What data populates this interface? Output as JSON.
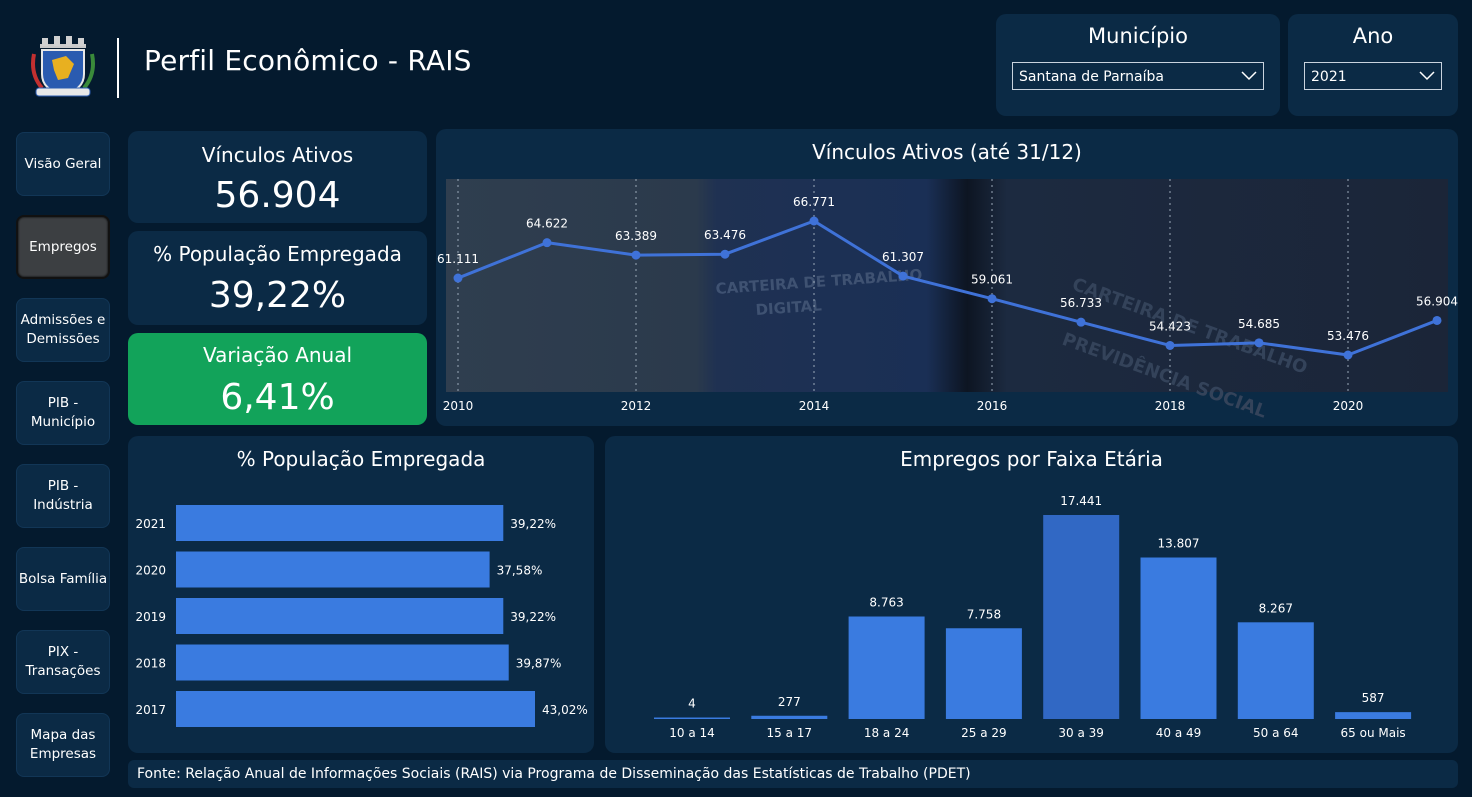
{
  "header": {
    "title": "Perfil Econômico - RAIS"
  },
  "filters": {
    "municipio": {
      "label": "Município",
      "value": "Santana de Parnaíba"
    },
    "ano": {
      "label": "Ano",
      "value": "2021"
    }
  },
  "nav": [
    {
      "label": "Visão Geral"
    },
    {
      "label": "Empregos",
      "active": true
    },
    {
      "label": "Admissões e Demissões"
    },
    {
      "label": "PIB - Município"
    },
    {
      "label": "PIB - Indústria"
    },
    {
      "label": "Bolsa Família"
    },
    {
      "label": "PIX - Transações"
    },
    {
      "label": "Mapa das Empresas"
    }
  ],
  "kpis": {
    "vinculos": {
      "label": "Vínculos Ativos",
      "value": "56.904"
    },
    "populacao": {
      "label": "% População Empregada",
      "value": "39,22%"
    },
    "variacao": {
      "label": "Variação Anual",
      "value": "6,41%"
    }
  },
  "colors": {
    "accent": "#3a7be0",
    "positive": "#12a35a",
    "line": "#3f72d8"
  },
  "footer": {
    "source": "Fonte: Relação Anual de Informações Sociais (RAIS) via Programa de Disseminação das Estatísticas de Trabalho (PDET)"
  },
  "chart_data": [
    {
      "type": "line",
      "title": "Vínculos Ativos (até 31/12)",
      "x": [
        2010,
        2011,
        2012,
        2013,
        2014,
        2015,
        2016,
        2017,
        2018,
        2019,
        2020,
        2021
      ],
      "values": [
        61111,
        64622,
        63389,
        63476,
        66771,
        61307,
        59061,
        56733,
        54423,
        54685,
        53476,
        56904
      ],
      "labels": [
        "61.111",
        "64.622",
        "63.389",
        "63.476",
        "66.771",
        "61.307",
        "59.061",
        "56.733",
        "54.423",
        "54.685",
        "53.476",
        "56.904"
      ],
      "xticks": [
        "2010",
        "2012",
        "2014",
        "2016",
        "2018",
        "2020"
      ],
      "grid": "vertical dotted"
    },
    {
      "type": "bar",
      "orientation": "horizontal",
      "title": "% População Empregada",
      "categories": [
        "2021",
        "2020",
        "2019",
        "2018",
        "2017"
      ],
      "values": [
        39.22,
        37.58,
        39.22,
        39.87,
        43.02
      ],
      "labels": [
        "39,22%",
        "37,58%",
        "39,22%",
        "39,87%",
        "43,02%"
      ]
    },
    {
      "type": "bar",
      "title": "Empregos por Faixa Etária",
      "categories": [
        "10 a 14",
        "15 a 17",
        "18 a 24",
        "25 a 29",
        "30 a 39",
        "40 a 49",
        "50 a 64",
        "65 ou Mais"
      ],
      "values": [
        4,
        277,
        8763,
        7758,
        17441,
        13807,
        8267,
        587
      ],
      "labels": [
        "4",
        "277",
        "8.763",
        "7.758",
        "17.441",
        "13.807",
        "8.267",
        "587"
      ],
      "highlight": "30 a 39"
    }
  ]
}
